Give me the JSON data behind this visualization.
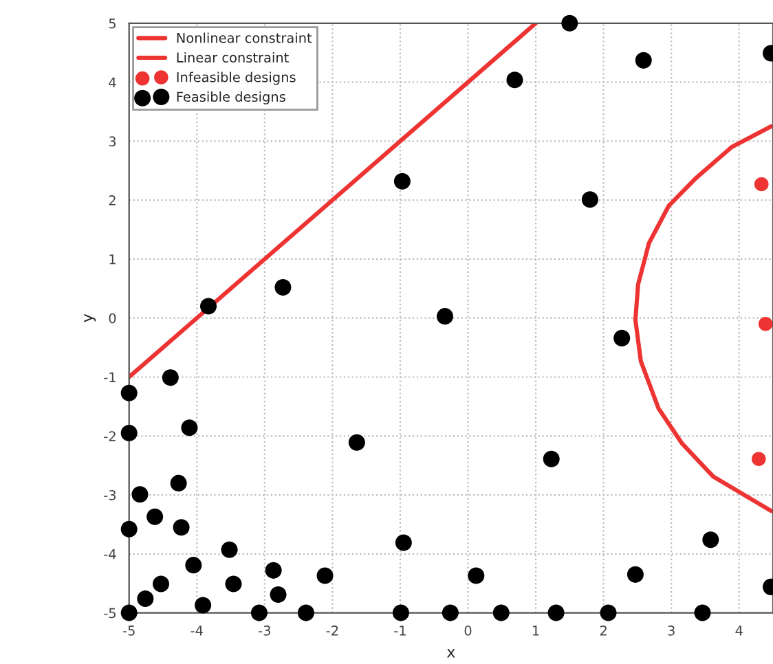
{
  "chart_data": {
    "type": "scatter",
    "xlabel": "x",
    "ylabel": "y",
    "xlim": [
      -5,
      4.5
    ],
    "ylim": [
      -5,
      5
    ],
    "xticks": [
      -5,
      -4,
      -3,
      -2,
      -1,
      0,
      1,
      2,
      3,
      4
    ],
    "yticks": [
      -5,
      -4,
      -3,
      -2,
      -1,
      0,
      1,
      2,
      3,
      4,
      5
    ],
    "grid": true,
    "legend": "top left",
    "series": [
      {
        "type": "line",
        "name": "Nonlinear constraint",
        "color": "#ee3333",
        "marker": "none",
        "x": [
          4.47,
          3.89,
          3.36,
          2.96,
          2.67,
          2.51,
          2.47,
          2.55,
          2.81,
          3.16,
          3.62,
          4.47
        ],
        "values": [
          3.25,
          2.9,
          2.37,
          1.9,
          1.27,
          0.57,
          -0.03,
          -0.73,
          -1.53,
          -2.13,
          -2.69,
          -3.27
        ]
      },
      {
        "type": "line",
        "name": "Linear constraint",
        "color": "#ee3333",
        "marker": "none",
        "x": [
          -5,
          1
        ],
        "values": [
          -1,
          5
        ]
      },
      {
        "name": "Infeasible designs",
        "color": "#ee3333",
        "marker": "circle",
        "x": [
          4.33,
          4.39,
          4.29
        ],
        "values": [
          2.27,
          -0.1,
          -2.39
        ]
      },
      {
        "name": "Feasible designs",
        "color": "#000000",
        "marker": "circle",
        "x": [
          -3.83,
          -2.73,
          -0.97,
          1.5,
          2.59,
          4.47,
          0.69,
          1.8,
          -0.34,
          2.27,
          -4.39,
          -5,
          -4.11,
          -5,
          -1.64,
          -4.84,
          -4.27,
          -4.62,
          -5,
          -4.23,
          -3.52,
          -4.05,
          -0.95,
          -2.87,
          -3.46,
          -4.53,
          -2.11,
          -4.76,
          -2.8,
          -3.91,
          -5,
          -3.08,
          -2.39,
          -0.99,
          1.23,
          0.12,
          2.47,
          3.58,
          -0.26,
          0.49,
          1.3,
          2.07,
          3.46,
          4.47
        ],
        "values": [
          0.2,
          0.52,
          2.32,
          5.0,
          4.37,
          4.49,
          4.04,
          2.01,
          0.03,
          -0.34,
          -1.01,
          -1.27,
          -1.86,
          -1.95,
          -2.11,
          -2.99,
          -2.8,
          -3.37,
          -3.58,
          -3.55,
          -3.93,
          -4.19,
          -3.81,
          -4.28,
          -4.51,
          -4.51,
          -4.37,
          -4.76,
          -4.69,
          -4.87,
          -5,
          -5,
          -5,
          -5,
          -2.39,
          -4.37,
          -4.35,
          -3.76,
          -5,
          -5,
          -5,
          -5,
          -5,
          -4.56
        ]
      }
    ]
  }
}
